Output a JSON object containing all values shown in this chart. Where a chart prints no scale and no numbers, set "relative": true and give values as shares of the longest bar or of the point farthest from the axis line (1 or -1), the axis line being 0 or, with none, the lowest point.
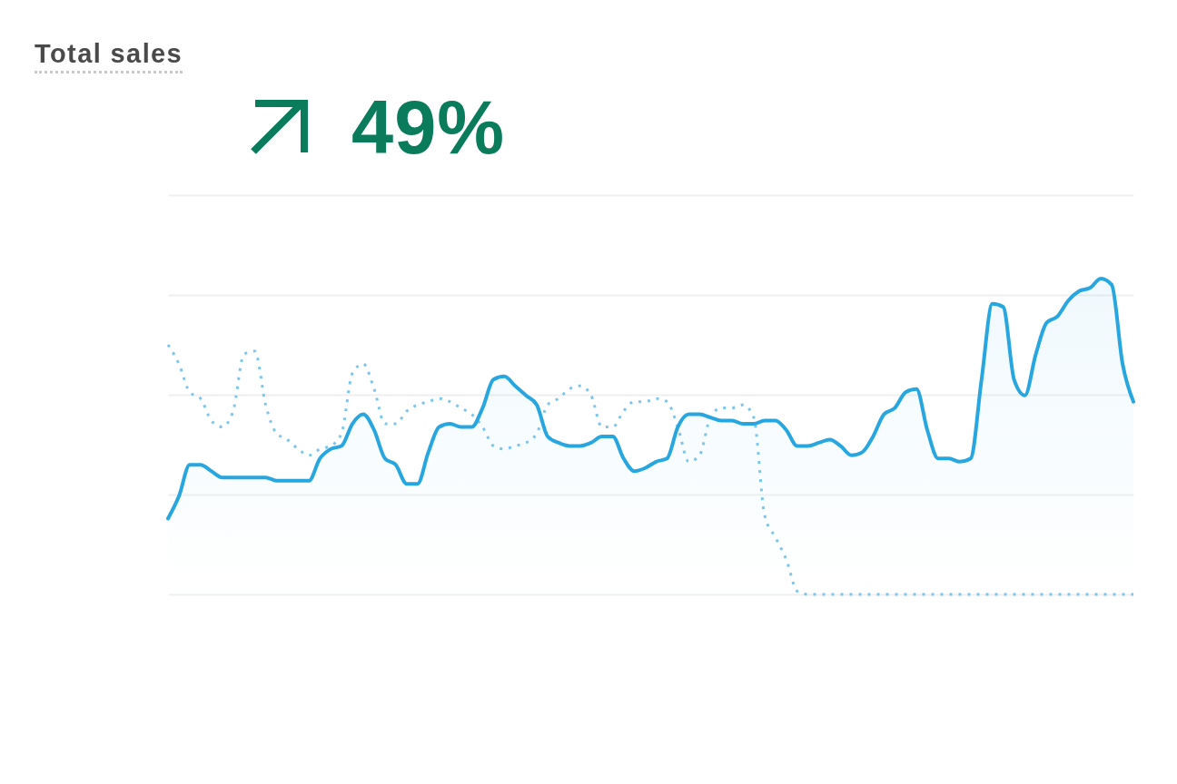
{
  "chart_data": {
    "type": "line",
    "title": "Total sales",
    "subtitle": "49%",
    "relative": true,
    "grid": "y",
    "categories": [
      null,
      null,
      null,
      null,
      null,
      null,
      null,
      null,
      null,
      null,
      null,
      null,
      null,
      null,
      null,
      null,
      null,
      null,
      null,
      null,
      null,
      null,
      null,
      null,
      null,
      null,
      null,
      null,
      null,
      null,
      null,
      null,
      null,
      null,
      null,
      null,
      null,
      null,
      null,
      null,
      null,
      null,
      null,
      null,
      null,
      null,
      null,
      null,
      null,
      null,
      null,
      null,
      null,
      null,
      null,
      null,
      null,
      null,
      null,
      null,
      null,
      null,
      null,
      null,
      null,
      null,
      null,
      null,
      null,
      null,
      null,
      null,
      null,
      null,
      null,
      null,
      null,
      null,
      null,
      null,
      null,
      null,
      null,
      null,
      null,
      null,
      null,
      null,
      null,
      null
    ],
    "series": [
      {
        "type": "area",
        "color": "#27a6e0",
        "values": [
          0.24,
          0.31,
          0.41,
          0.41,
          0.39,
          0.37,
          0.37,
          0.37,
          0.37,
          0.37,
          0.36,
          0.36,
          0.36,
          0.36,
          0.43,
          0.46,
          0.47,
          0.54,
          0.57,
          0.52,
          0.43,
          0.41,
          0.35,
          0.35,
          0.45,
          0.53,
          0.54,
          0.53,
          0.53,
          0.59,
          0.68,
          0.69,
          0.66,
          0.63,
          0.6,
          0.5,
          0.48,
          0.47,
          0.47,
          0.48,
          0.5,
          0.5,
          0.43,
          0.39,
          0.4,
          0.42,
          0.43,
          0.53,
          0.57,
          0.57,
          0.56,
          0.55,
          0.55,
          0.54,
          0.54,
          0.55,
          0.55,
          0.52,
          0.47,
          0.47,
          0.48,
          0.49,
          0.47,
          0.44,
          0.45,
          0.5,
          0.57,
          0.59,
          0.64,
          0.65,
          0.52,
          0.43,
          0.43,
          0.42,
          0.43,
          0.68,
          0.92,
          0.91,
          0.68,
          0.63,
          0.76,
          0.86,
          0.88,
          0.93,
          0.96,
          0.97,
          1,
          0.98,
          0.73,
          0.61
        ]
      },
      {
        "type": "line",
        "color": "#7cc6ec",
        "line_style": "dotted",
        "values": [
          0.79,
          0.73,
          0.64,
          0.62,
          0.55,
          0.53,
          0.58,
          0.76,
          0.77,
          0.6,
          0.51,
          0.49,
          0.46,
          0.44,
          0.46,
          0.47,
          0.51,
          0.7,
          0.73,
          0.65,
          0.54,
          0.54,
          0.58,
          0.6,
          0.61,
          0.62,
          0.61,
          0.59,
          0.57,
          0.53,
          0.47,
          0.46,
          0.47,
          0.48,
          0.51,
          0.6,
          0.62,
          0.65,
          0.66,
          0.63,
          0.53,
          0.53,
          0.58,
          0.61,
          0.61,
          0.62,
          0.61,
          0.53,
          0.42,
          0.44,
          0.56,
          0.59,
          0.59,
          0.6,
          0.56,
          0.25,
          0.18,
          0.11,
          0.01,
          0,
          0,
          0,
          0,
          0,
          0,
          0,
          0,
          0,
          0,
          0,
          0,
          0,
          0,
          0,
          0,
          0,
          0,
          0,
          0,
          0,
          0,
          0,
          0,
          0,
          0,
          0,
          0,
          0,
          0,
          0
        ]
      }
    ]
  }
}
